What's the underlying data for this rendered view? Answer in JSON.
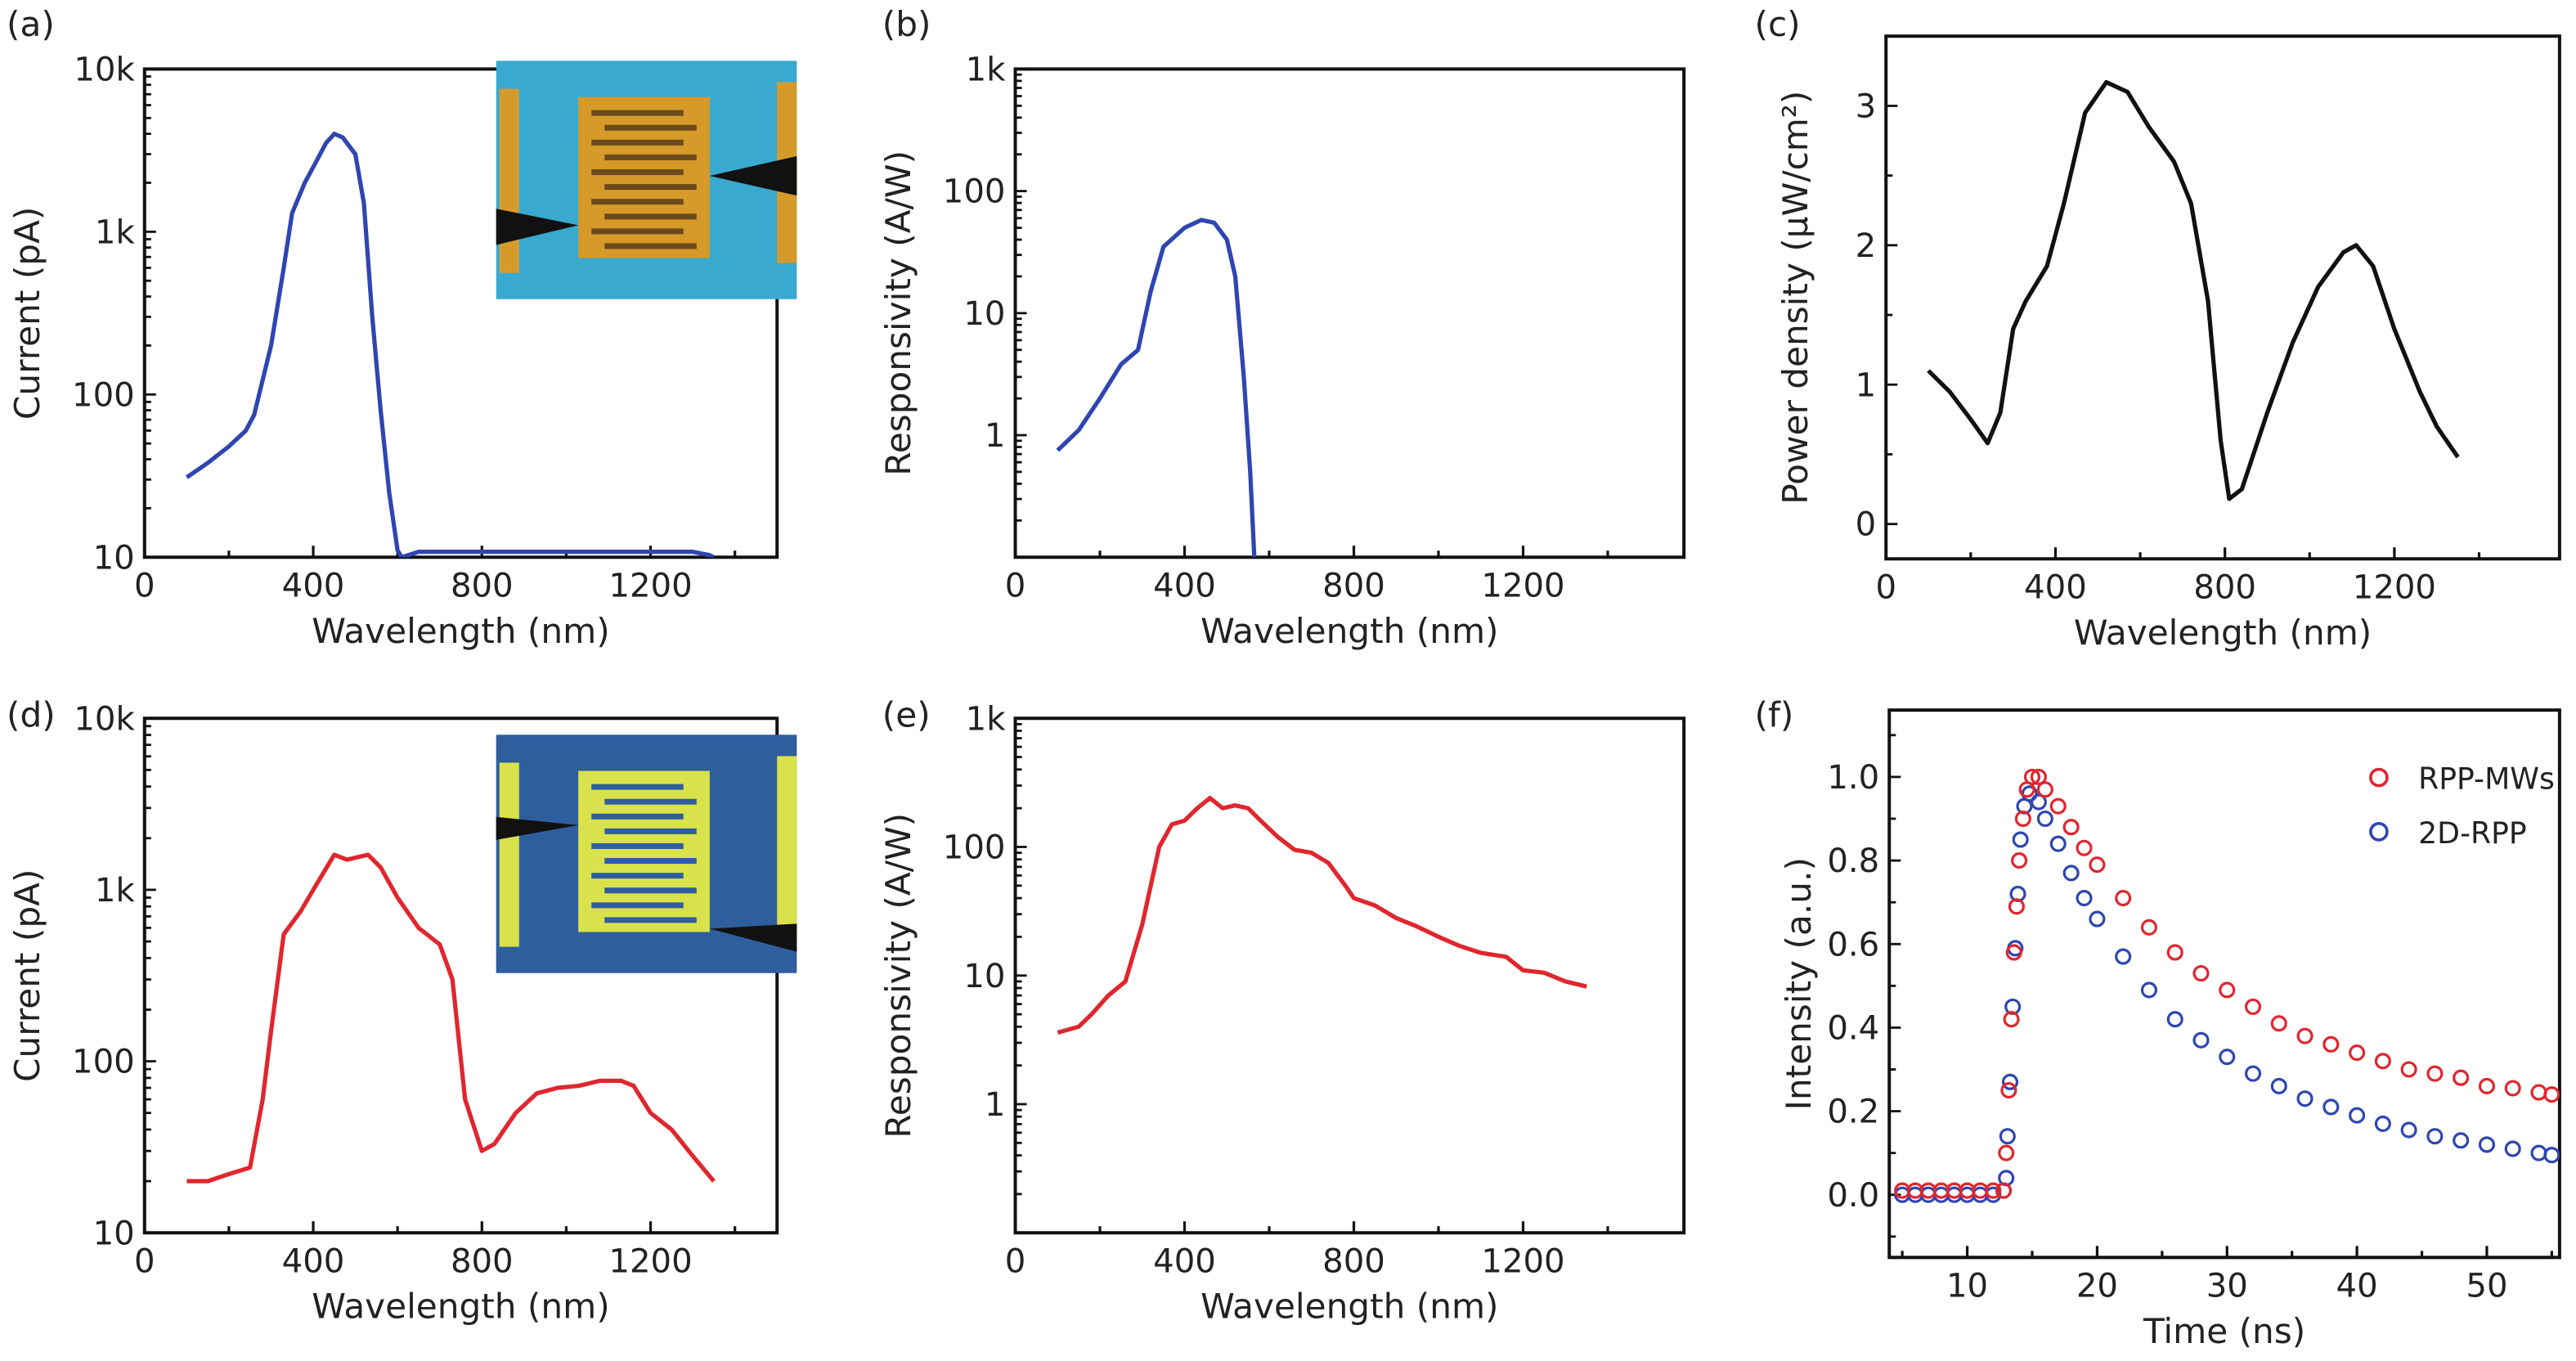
{
  "chart_data": [
    {
      "panel": "(a)",
      "type": "line",
      "color": "#2f46b0",
      "xlabel": "Wavelength (nm)",
      "ylabel": "Current (pA)",
      "xlim": [
        0,
        1500
      ],
      "ylim": [
        10,
        10000
      ],
      "yscale": "log",
      "xticks": [
        0,
        400,
        800,
        1200
      ],
      "xtick_labels": [
        "0",
        "400",
        "800",
        "1200"
      ],
      "yticks": [
        10,
        100,
        1000,
        10000
      ],
      "ytick_labels": [
        "10",
        "100",
        "1k",
        "10k"
      ],
      "inset": "optical micrograph of device (blue substrate, gold interdigitated electrodes, probe tips)",
      "x": [
        100,
        150,
        200,
        240,
        260,
        300,
        330,
        350,
        380,
        400,
        430,
        450,
        470,
        500,
        520,
        540,
        560,
        580,
        600,
        610,
        650,
        800,
        1000,
        1300,
        1340,
        1350
      ],
      "y": [
        31,
        38,
        48,
        60,
        75,
        200,
        600,
        1300,
        2000,
        2500,
        3500,
        4000,
        3800,
        3000,
        1500,
        300,
        80,
        25,
        11,
        10,
        10.8,
        10.8,
        10.8,
        10.8,
        10.3,
        10
      ]
    },
    {
      "panel": "(b)",
      "type": "line",
      "color": "#2f46b0",
      "xlabel": "Wavelength (nm)",
      "ylabel": "Responsivity (A/W)",
      "xlim": [
        0,
        1580
      ],
      "ylim": [
        0.1,
        1000
      ],
      "yscale": "log",
      "xticks": [
        0,
        400,
        800,
        1200
      ],
      "xtick_labels": [
        "0",
        "400",
        "800",
        "1200"
      ],
      "yticks": [
        1,
        10,
        100,
        1000
      ],
      "ytick_labels": [
        "1",
        "10",
        "100",
        "1k"
      ],
      "x": [
        100,
        150,
        200,
        250,
        290,
        320,
        350,
        400,
        440,
        470,
        500,
        520,
        540,
        555,
        565
      ],
      "y": [
        0.75,
        1.1,
        2,
        3.8,
        5,
        15,
        35,
        50,
        58,
        55,
        40,
        20,
        3,
        0.5,
        0.1
      ]
    },
    {
      "panel": "(c)",
      "type": "line",
      "color": "#111111",
      "xlabel": "Wavelength (nm)",
      "ylabel": "Power density (μW/cm²)",
      "xlim": [
        0,
        1590
      ],
      "ylim": [
        -0.25,
        3.5
      ],
      "yscale": "linear",
      "xticks": [
        0,
        400,
        800,
        1200
      ],
      "xtick_labels": [
        "0",
        "400",
        "800",
        "1200"
      ],
      "yticks": [
        0,
        1,
        2,
        3
      ],
      "ytick_labels": [
        "0",
        "1",
        "2",
        "3"
      ],
      "x": [
        100,
        150,
        200,
        240,
        270,
        300,
        330,
        380,
        420,
        470,
        520,
        570,
        620,
        680,
        720,
        760,
        790,
        810,
        840,
        900,
        960,
        1020,
        1080,
        1110,
        1150,
        1200,
        1260,
        1300,
        1350
      ],
      "y": [
        1.1,
        0.95,
        0.75,
        0.58,
        0.8,
        1.4,
        1.6,
        1.85,
        2.3,
        2.95,
        3.17,
        3.1,
        2.85,
        2.6,
        2.3,
        1.6,
        0.6,
        0.18,
        0.25,
        0.8,
        1.3,
        1.7,
        1.95,
        2.0,
        1.85,
        1.4,
        0.95,
        0.7,
        0.48
      ]
    },
    {
      "panel": "(d)",
      "type": "line",
      "color": "#e0262e",
      "xlabel": "Wavelength (nm)",
      "ylabel": "Current (pA)",
      "xlim": [
        0,
        1500
      ],
      "ylim": [
        10,
        10000
      ],
      "yscale": "log",
      "xticks": [
        0,
        400,
        800,
        1200
      ],
      "xtick_labels": [
        "0",
        "400",
        "800",
        "1200"
      ],
      "yticks": [
        10,
        100,
        1000,
        10000
      ],
      "ytick_labels": [
        "10",
        "100",
        "1k",
        "10k"
      ],
      "inset": "optical micrograph of device (dark blue substrate, yellow interdigitated electrodes, probe tips)",
      "x": [
        100,
        150,
        200,
        250,
        280,
        300,
        330,
        370,
        400,
        450,
        480,
        530,
        560,
        600,
        650,
        700,
        730,
        760,
        800,
        830,
        880,
        930,
        980,
        1030,
        1080,
        1130,
        1160,
        1200,
        1250,
        1300,
        1350
      ],
      "y": [
        20,
        20,
        22,
        24,
        60,
        150,
        550,
        750,
        1000,
        1600,
        1500,
        1600,
        1350,
        900,
        600,
        480,
        300,
        60,
        30,
        33,
        50,
        65,
        70,
        72,
        77,
        77,
        72,
        50,
        40,
        28,
        20
      ]
    },
    {
      "panel": "(e)",
      "type": "line",
      "color": "#e0262e",
      "xlabel": "Wavelength (nm)",
      "ylabel": "Responsivity (A/W)",
      "xlim": [
        0,
        1580
      ],
      "ylim": [
        0.1,
        1000
      ],
      "yscale": "log",
      "xticks": [
        0,
        400,
        800,
        1200
      ],
      "xtick_labels": [
        "0",
        "400",
        "800",
        "1200"
      ],
      "yticks": [
        1,
        10,
        100,
        1000
      ],
      "ytick_labels": [
        "1",
        "10",
        "100",
        "1k"
      ],
      "x": [
        100,
        150,
        180,
        220,
        260,
        300,
        340,
        370,
        400,
        430,
        460,
        490,
        520,
        550,
        580,
        620,
        660,
        700,
        740,
        780,
        800,
        850,
        900,
        950,
        1000,
        1050,
        1100,
        1130,
        1160,
        1200,
        1250,
        1300,
        1350
      ],
      "y": [
        3.6,
        4,
        5,
        7,
        9,
        25,
        100,
        150,
        160,
        200,
        240,
        200,
        210,
        200,
        160,
        120,
        95,
        90,
        75,
        50,
        40,
        35,
        28,
        24,
        20,
        17,
        15,
        14.5,
        14,
        11,
        10.5,
        9,
        8.2
      ]
    },
    {
      "panel": "(f)",
      "type": "scatter",
      "xlabel": "Time (ns)",
      "ylabel": "Intensity (a.u.)",
      "xlim": [
        4,
        55.6
      ],
      "ylim": [
        -0.15,
        1.16
      ],
      "yscale": "linear",
      "xticks": [
        10,
        20,
        30,
        40,
        50
      ],
      "xtick_labels": [
        "10",
        "20",
        "30",
        "40",
        "50"
      ],
      "yticks": [
        0,
        0.2,
        0.4,
        0.6,
        0.8,
        1.0
      ],
      "ytick_labels": [
        "0.0",
        "0.2",
        "0.4",
        "0.6",
        "0.8",
        "1.0"
      ],
      "legend": "top-right",
      "series": [
        {
          "name": "2D-RPP",
          "color": "#2f46b0",
          "x": [
            5,
            6,
            7,
            8,
            9,
            10,
            11,
            12,
            12.8,
            13,
            13.1,
            13.3,
            13.5,
            13.7,
            13.9,
            14.1,
            14.4,
            14.8,
            15.5,
            16,
            17,
            18,
            19,
            20,
            22,
            24,
            26,
            28,
            30,
            32,
            34,
            36,
            38,
            40,
            42,
            44,
            46,
            48,
            50,
            52,
            54,
            55
          ],
          "y": [
            0,
            0,
            0,
            0,
            0,
            0,
            0,
            0,
            0.01,
            0.04,
            0.14,
            0.27,
            0.45,
            0.59,
            0.72,
            0.85,
            0.93,
            0.96,
            0.94,
            0.9,
            0.84,
            0.77,
            0.71,
            0.66,
            0.57,
            0.49,
            0.42,
            0.37,
            0.33,
            0.29,
            0.26,
            0.23,
            0.21,
            0.19,
            0.17,
            0.155,
            0.14,
            0.13,
            0.12,
            0.11,
            0.1,
            0.095
          ]
        },
        {
          "name": "RPP-MWs",
          "color": "#e0262e",
          "x": [
            5,
            6,
            7,
            8,
            9,
            10,
            11,
            12,
            12.8,
            13,
            13.2,
            13.4,
            13.6,
            13.8,
            14,
            14.3,
            14.6,
            15,
            15.5,
            16,
            17,
            18,
            19,
            20,
            22,
            24,
            26,
            28,
            30,
            32,
            34,
            36,
            38,
            40,
            42,
            44,
            46,
            48,
            50,
            52,
            54,
            55
          ],
          "y": [
            0.01,
            0.01,
            0.01,
            0.01,
            0.01,
            0.01,
            0.01,
            0.01,
            0.01,
            0.1,
            0.25,
            0.42,
            0.58,
            0.69,
            0.8,
            0.9,
            0.97,
            1.0,
            1.0,
            0.97,
            0.93,
            0.88,
            0.83,
            0.79,
            0.71,
            0.64,
            0.58,
            0.53,
            0.49,
            0.45,
            0.41,
            0.38,
            0.36,
            0.34,
            0.32,
            0.3,
            0.29,
            0.28,
            0.26,
            0.255,
            0.245,
            0.24
          ]
        }
      ]
    }
  ]
}
